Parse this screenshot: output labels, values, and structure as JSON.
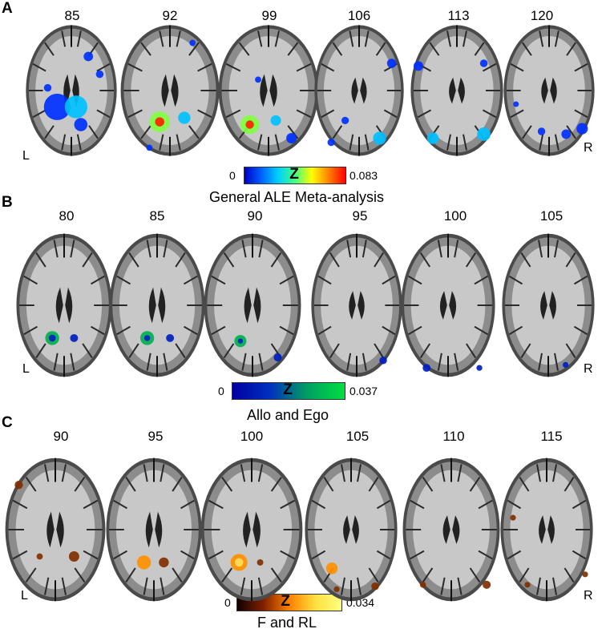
{
  "panels": [
    {
      "letter": "A",
      "slices": [
        "85",
        "92",
        "99",
        "106",
        "113",
        "120"
      ],
      "left_label": "L",
      "right_label": "R",
      "colorbar": {
        "min": "0",
        "symbol": "Z",
        "max": "0.083",
        "colormap": "jet",
        "colors": [
          "#0000c8",
          "#0060ff",
          "#00d0ff",
          "#40ff80",
          "#ffff00",
          "#ff8000",
          "#ff0000"
        ]
      },
      "caption": "General ALE Meta-analysis"
    },
    {
      "letter": "B",
      "slices": [
        "80",
        "85",
        "90",
        "95",
        "100",
        "105"
      ],
      "left_label": "L",
      "right_label": "R",
      "colorbar": {
        "min": "0",
        "symbol": "Z",
        "max": "0.037",
        "colormap": "blue-green",
        "colors": [
          "#0000a0",
          "#0030c0",
          "#00a060",
          "#00e040"
        ]
      },
      "caption": "Allo and Ego"
    },
    {
      "letter": "C",
      "slices": [
        "90",
        "95",
        "100",
        "105",
        "110",
        "115"
      ],
      "left_label": "L",
      "right_label": "R",
      "colorbar": {
        "min": "0",
        "symbol": "Z",
        "max": "0.034",
        "colormap": "hot",
        "colors": [
          "#100000",
          "#802000",
          "#ff8000",
          "#ffe040",
          "#ffff80"
        ]
      },
      "caption": "F and RL"
    }
  ],
  "activation_colors": {
    "A": [
      "#0030ff",
      "#00c0ff",
      "#80ff40",
      "#ff2000"
    ],
    "B": [
      "#0020c0",
      "#00b050"
    ],
    "C": [
      "#803000",
      "#ff9000",
      "#ffe060"
    ]
  }
}
